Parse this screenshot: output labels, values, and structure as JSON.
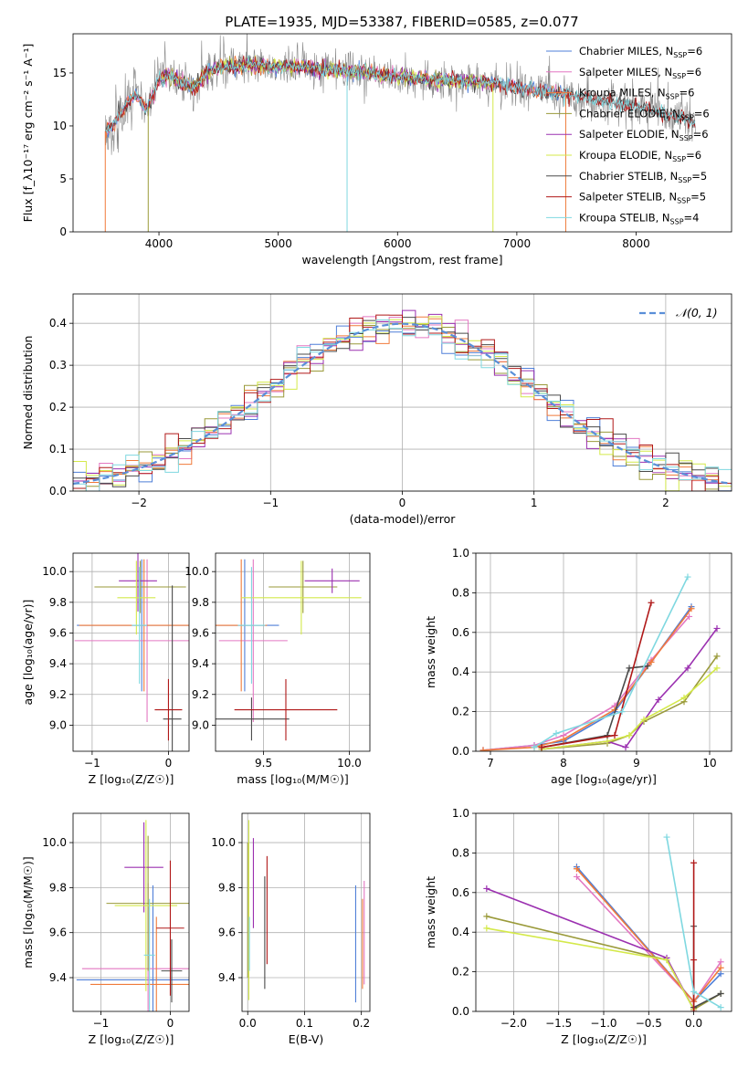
{
  "title": "PLATE=1935, MJD=53387, FIBERID=0585, z=0.077",
  "colors": {
    "Chabrier MILES": "#4f7fd8",
    "Salpeter MILES": "#e377c2",
    "Kroupa MILES": "#f07a3a",
    "Chabrier ELODIE": "#9a9a3a",
    "Salpeter ELODIE": "#9b30b0",
    "Kroupa ELODIE": "#d4e94a",
    "Chabrier STELIB": "#4a4a4a",
    "Salpeter STELIB": "#b01818",
    "Kroupa STELIB": "#7fd8e0"
  },
  "chart_data": [
    {
      "id": "spectrum",
      "type": "line",
      "title": "PLATE=1935, MJD=53387, FIBERID=0585, z=0.077",
      "xlabel": "wavelength [Angstrom, rest frame]",
      "ylabel": "Flux [f_λ10⁻¹⁷ erg cm⁻² s⁻¹ A⁻¹]",
      "xlim": [
        3280,
        8800
      ],
      "ylim": [
        0,
        18.7
      ],
      "xticks": [
        4000,
        5000,
        6000,
        7000,
        8000
      ],
      "yticks": [
        0,
        5,
        10,
        15
      ],
      "legend": [
        {
          "label": "Chabrier MILES, N",
          "sub": "SSP",
          "suffix": "=6",
          "color": "#4f7fd8"
        },
        {
          "label": "Salpeter MILES, N",
          "sub": "SSP",
          "suffix": "=6",
          "color": "#e377c2"
        },
        {
          "label": "Kroupa MILES, N",
          "sub": "SSP",
          "suffix": "=6",
          "color": "#f07a3a"
        },
        {
          "label": "Chabrier ELODIE, N",
          "sub": "SSP",
          "suffix": "=6",
          "color": "#9a9a3a"
        },
        {
          "label": "Salpeter ELODIE, N",
          "sub": "SSP",
          "suffix": "=6",
          "color": "#9b30b0"
        },
        {
          "label": "Kroupa ELODIE, N",
          "sub": "SSP",
          "suffix": "=6",
          "color": "#d4e94a"
        },
        {
          "label": "Chabrier STELIB, N",
          "sub": "SSP",
          "suffix": "=5",
          "color": "#4a4a4a"
        },
        {
          "label": "Salpeter STELIB, N",
          "sub": "SSP",
          "suffix": "=5",
          "color": "#b01818"
        },
        {
          "label": "Kroupa STELIB, N",
          "sub": "SSP",
          "suffix": "=4",
          "color": "#7fd8e0"
        }
      ],
      "legend_position": "top-right",
      "continuum": {
        "x": [
          3550,
          3600,
          3700,
          3800,
          3900,
          4000,
          4100,
          4200,
          4300,
          4400,
          4500,
          4700,
          5000,
          5200,
          5500,
          5800,
          6000,
          6300,
          6600,
          6800,
          7000,
          7300,
          7600,
          8000,
          8300,
          8500
        ],
        "y": [
          9.5,
          10.0,
          11.5,
          13.0,
          11.5,
          14.5,
          14.8,
          14.0,
          13.5,
          15.0,
          15.5,
          15.8,
          15.6,
          15.6,
          15.2,
          15.0,
          14.6,
          14.4,
          14.2,
          14.0,
          13.6,
          13.2,
          12.6,
          11.8,
          11.0,
          10.3
        ]
      },
      "dips": [
        {
          "x": 3550,
          "y": 0
        },
        {
          "x": 3910,
          "y": 0
        },
        {
          "x": 5577,
          "y": 0
        },
        {
          "x": 6800,
          "y": 0
        },
        {
          "x": 7410,
          "y": 0
        }
      ],
      "grid": false
    },
    {
      "id": "residuals",
      "type": "histogram",
      "xlabel": "(data-model)/error",
      "ylabel": "Normed distribution",
      "xlim": [
        -2.5,
        2.5
      ],
      "ylim": [
        0,
        0.47
      ],
      "xticks": [
        -2,
        -1,
        0,
        1,
        2
      ],
      "yticks": [
        0.0,
        0.1,
        0.2,
        0.3,
        0.4
      ],
      "bin_width": 0.1,
      "reference": {
        "label": "𝒩(0, 1)",
        "mean": 0,
        "sigma": 1,
        "color": "#5a8fd8"
      },
      "legend_position": "top-right",
      "grid": true
    },
    {
      "id": "age-vs-Z",
      "type": "errorbar",
      "xlabel": "Z [log₁₀(Z/Z☉)]",
      "ylabel": "age  [log₁₀(age/yr)]",
      "xlim": [
        -1.25,
        0.27
      ],
      "ylim": [
        8.83,
        10.12
      ],
      "xticks": [
        -1,
        0
      ],
      "yticks": [
        9.0,
        9.2,
        9.4,
        9.6,
        9.8,
        10.0
      ],
      "points": [
        {
          "model": "Chabrier MILES",
          "x": -0.35,
          "xerr": 0.85,
          "y": 9.65,
          "yerr": 0.43
        },
        {
          "model": "Salpeter MILES",
          "x": -0.28,
          "xerr": 0.95,
          "y": 9.55,
          "yerr": 0.53
        },
        {
          "model": "Kroupa MILES",
          "x": -0.32,
          "xerr": 0.85,
          "y": 9.65,
          "yerr": 0.43
        },
        {
          "model": "Chabrier ELODIE",
          "x": -0.37,
          "xerr": 0.6,
          "y": 9.9,
          "yerr": 0.17
        },
        {
          "model": "Salpeter ELODIE",
          "x": -0.4,
          "xerr": 0.25,
          "y": 9.94,
          "yerr": 0.2
        },
        {
          "model": "Kroupa ELODIE",
          "x": -0.42,
          "xerr": 0.25,
          "y": 9.83,
          "yerr": 0.24
        },
        {
          "model": "Chabrier STELIB",
          "x": 0.05,
          "xerr": 0.12,
          "y": 9.04,
          "yerr": 0.87
        },
        {
          "model": "Salpeter STELIB",
          "x": 0.0,
          "xerr": 0.18,
          "y": 9.1,
          "yerr": 0.2
        },
        {
          "model": "Kroupa STELIB",
          "x": -0.38,
          "xerr": 0.1,
          "y": 9.65,
          "yerr": 0.38
        }
      ],
      "grid": true
    },
    {
      "id": "age-vs-mass",
      "type": "errorbar",
      "xlabel": "mass [log₁₀(M/M☉)]",
      "ylabel": "",
      "xlim": [
        9.22,
        10.12
      ],
      "ylim": [
        8.83,
        10.12
      ],
      "xticks": [
        9.5,
        10.0
      ],
      "yticks": [
        9.0,
        9.2,
        9.4,
        9.6,
        9.8,
        10.0
      ],
      "points": [
        {
          "model": "Chabrier MILES",
          "x": 9.39,
          "xerr": 0.2,
          "y": 9.65,
          "yerr": 0.43
        },
        {
          "model": "Salpeter MILES",
          "x": 9.44,
          "xerr": 0.2,
          "y": 9.55,
          "yerr": 0.53
        },
        {
          "model": "Kroupa MILES",
          "x": 9.37,
          "xerr": 0.15,
          "y": 9.65,
          "yerr": 0.43
        },
        {
          "model": "Chabrier ELODIE",
          "x": 9.73,
          "xerr": 0.2,
          "y": 9.9,
          "yerr": 0.17
        },
        {
          "model": "Salpeter ELODIE",
          "x": 9.9,
          "xerr": 0.16,
          "y": 9.94,
          "yerr": 0.08
        },
        {
          "model": "Kroupa ELODIE",
          "x": 9.72,
          "xerr": 0.35,
          "y": 9.83,
          "yerr": 0.24
        },
        {
          "model": "Chabrier STELIB",
          "x": 9.43,
          "xerr": 0.22,
          "y": 9.04,
          "yerr": 0.14
        },
        {
          "model": "Salpeter STELIB",
          "x": 9.63,
          "xerr": 0.3,
          "y": 9.1,
          "yerr": 0.2
        },
        {
          "model": "Kroupa STELIB",
          "x": 9.43,
          "xerr": 0.08,
          "y": 9.65,
          "yerr": 0.38
        }
      ],
      "grid": true
    },
    {
      "id": "mass-weight-vs-age",
      "type": "line",
      "xlabel": "age  [log₁₀(age/yr)]",
      "ylabel": "mass weight",
      "xlim": [
        6.8,
        10.3
      ],
      "ylim": [
        0,
        1
      ],
      "xticks": [
        7,
        8,
        9,
        10
      ],
      "yticks": [
        0.0,
        0.2,
        0.4,
        0.6,
        0.8,
        1.0
      ],
      "series": [
        {
          "model": "Chabrier MILES",
          "x": [
            6.9,
            7.6,
            8.0,
            8.7,
            9.2,
            9.75
          ],
          "y": [
            0.005,
            0.03,
            0.05,
            0.2,
            0.45,
            0.73
          ]
        },
        {
          "model": "Salpeter MILES",
          "x": [
            6.9,
            7.6,
            8.0,
            8.7,
            9.2,
            9.72
          ],
          "y": [
            0.005,
            0.03,
            0.08,
            0.23,
            0.46,
            0.68
          ]
        },
        {
          "model": "Kroupa MILES",
          "x": [
            6.9,
            7.6,
            8.0,
            8.7,
            9.2,
            9.75
          ],
          "y": [
            0.005,
            0.02,
            0.06,
            0.21,
            0.45,
            0.72
          ]
        },
        {
          "model": "Chabrier ELODIE",
          "x": [
            7.7,
            8.6,
            8.9,
            9.1,
            9.65,
            10.1
          ],
          "y": [
            0.01,
            0.04,
            0.08,
            0.15,
            0.25,
            0.48
          ]
        },
        {
          "model": "Salpeter ELODIE",
          "x": [
            7.7,
            8.6,
            8.85,
            9.3,
            9.7,
            10.1
          ],
          "y": [
            0.01,
            0.05,
            0.02,
            0.26,
            0.42,
            0.62
          ]
        },
        {
          "model": "Kroupa ELODIE",
          "x": [
            7.7,
            8.6,
            8.9,
            9.1,
            9.65,
            10.1
          ],
          "y": [
            0.01,
            0.05,
            0.08,
            0.16,
            0.27,
            0.42
          ]
        },
        {
          "model": "Chabrier STELIB",
          "x": [
            7.7,
            8.6,
            8.9,
            9.15
          ],
          "y": [
            0.02,
            0.08,
            0.42,
            0.43
          ]
        },
        {
          "model": "Salpeter STELIB",
          "x": [
            7.7,
            8.7,
            9.2
          ],
          "y": [
            0.02,
            0.08,
            0.75
          ]
        },
        {
          "model": "Kroupa STELIB",
          "x": [
            7.6,
            7.9,
            8.8,
            9.7
          ],
          "y": [
            0.02,
            0.09,
            0.2,
            0.88
          ]
        }
      ],
      "grid": true
    },
    {
      "id": "mass-vs-Z",
      "type": "errorbar",
      "xlabel": "Z [log₁₀(Z/Z☉)]",
      "ylabel": "mass [log₁₀(M/M☉)]",
      "xlim": [
        -1.4,
        0.27
      ],
      "ylim": [
        9.25,
        10.13
      ],
      "xticks": [
        -1,
        0
      ],
      "yticks": [
        9.4,
        9.6,
        9.8,
        10.0
      ],
      "points": [
        {
          "model": "Chabrier MILES",
          "x": -0.25,
          "xerr": 1.1,
          "y": 9.39,
          "yerr": 0.42
        },
        {
          "model": "Salpeter MILES",
          "x": -0.32,
          "xerr": 0.95,
          "y": 9.44,
          "yerr": 0.38
        },
        {
          "model": "Kroupa MILES",
          "x": -0.2,
          "xerr": 0.95,
          "y": 9.37,
          "yerr": 0.3
        },
        {
          "model": "Chabrier ELODIE",
          "x": -0.32,
          "xerr": 0.6,
          "y": 9.73,
          "yerr": 0.3
        },
        {
          "model": "Salpeter ELODIE",
          "x": -0.38,
          "xerr": 0.28,
          "y": 9.89,
          "yerr": 0.2
        },
        {
          "model": "Kroupa ELODIE",
          "x": -0.35,
          "xerr": 0.45,
          "y": 9.72,
          "yerr": 0.38
        },
        {
          "model": "Chabrier STELIB",
          "x": 0.02,
          "xerr": 0.15,
          "y": 9.43,
          "yerr": 0.14
        },
        {
          "model": "Salpeter STELIB",
          "x": 0.0,
          "xerr": 0.2,
          "y": 9.62,
          "yerr": 0.3
        },
        {
          "model": "Kroupa STELIB",
          "x": -0.3,
          "xerr": 0.08,
          "y": 9.5,
          "yerr": 0.25
        }
      ],
      "grid": true
    },
    {
      "id": "mass-vs-ebv",
      "type": "errorbar",
      "xlabel": "E(B-V)",
      "ylabel": "",
      "xlim": [
        -0.01,
        0.215
      ],
      "ylim": [
        9.25,
        10.13
      ],
      "xticks": [
        0.0,
        0.1,
        0.2
      ],
      "yticks": [
        9.4,
        9.6,
        9.8,
        10.0
      ],
      "points": [
        {
          "model": "Chabrier MILES",
          "x": 0.19,
          "y": 9.55,
          "yerr": 0.26
        },
        {
          "model": "Salpeter MILES",
          "x": 0.205,
          "y": 9.6,
          "yerr": 0.23
        },
        {
          "model": "Kroupa MILES",
          "x": 0.202,
          "y": 9.55,
          "yerr": 0.2
        },
        {
          "model": "Chabrier ELODIE",
          "x": 0.0,
          "y": 9.7,
          "yerr": 0.3
        },
        {
          "model": "Salpeter ELODIE",
          "x": 0.01,
          "y": 9.82,
          "yerr": 0.2
        },
        {
          "model": "Kroupa ELODIE",
          "x": 0.002,
          "y": 9.7,
          "yerr": 0.4
        },
        {
          "model": "Chabrier STELIB",
          "x": 0.03,
          "y": 9.6,
          "yerr": 0.25
        },
        {
          "model": "Salpeter STELIB",
          "x": 0.034,
          "y": 9.7,
          "yerr": 0.24
        },
        {
          "model": "Kroupa STELIB",
          "x": 0.003,
          "y": 9.55,
          "yerr": 0.12
        }
      ],
      "grid": true
    },
    {
      "id": "mass-weight-vs-Z",
      "type": "line",
      "xlabel": "Z [log₁₀(Z/Z☉)]",
      "ylabel": "mass weight",
      "xlim": [
        -2.42,
        0.42
      ],
      "ylim": [
        0,
        1
      ],
      "xticks": [
        -2.0,
        -1.5,
        -1.0,
        -0.5,
        0.0
      ],
      "yticks": [
        0.0,
        0.2,
        0.4,
        0.6,
        0.8,
        1.0
      ],
      "series": [
        {
          "model": "Chabrier MILES",
          "x": [
            -1.3,
            0.0,
            0.3
          ],
          "y": [
            0.73,
            0.05,
            0.19
          ]
        },
        {
          "model": "Salpeter MILES",
          "x": [
            -1.3,
            0.0,
            0.3
          ],
          "y": [
            0.68,
            0.05,
            0.25
          ]
        },
        {
          "model": "Kroupa MILES",
          "x": [
            -1.3,
            0.0,
            0.3
          ],
          "y": [
            0.72,
            0.05,
            0.22
          ]
        },
        {
          "model": "Chabrier ELODIE",
          "x": [
            -2.3,
            -0.3,
            0.0,
            0.3
          ],
          "y": [
            0.48,
            0.26,
            0.01,
            0.09
          ]
        },
        {
          "model": "Salpeter ELODIE",
          "x": [
            -2.3,
            -0.3,
            0.0
          ],
          "y": [
            0.62,
            0.27,
            0.01
          ]
        },
        {
          "model": "Kroupa ELODIE",
          "x": [
            -2.3,
            -0.3,
            0.0
          ],
          "y": [
            0.42,
            0.26,
            0.01
          ]
        },
        {
          "model": "Chabrier STELIB",
          "x": [
            0.0,
            0.0,
            0.3
          ],
          "y": [
            0.43,
            0.02,
            0.09
          ]
        },
        {
          "model": "Salpeter STELIB",
          "x": [
            0.0,
            0.0,
            0.0
          ],
          "y": [
            0.75,
            0.26,
            0.0
          ]
        },
        {
          "model": "Kroupa STELIB",
          "x": [
            -0.3,
            0.0,
            0.3
          ],
          "y": [
            0.88,
            0.1,
            0.02
          ]
        }
      ],
      "grid": true
    }
  ]
}
